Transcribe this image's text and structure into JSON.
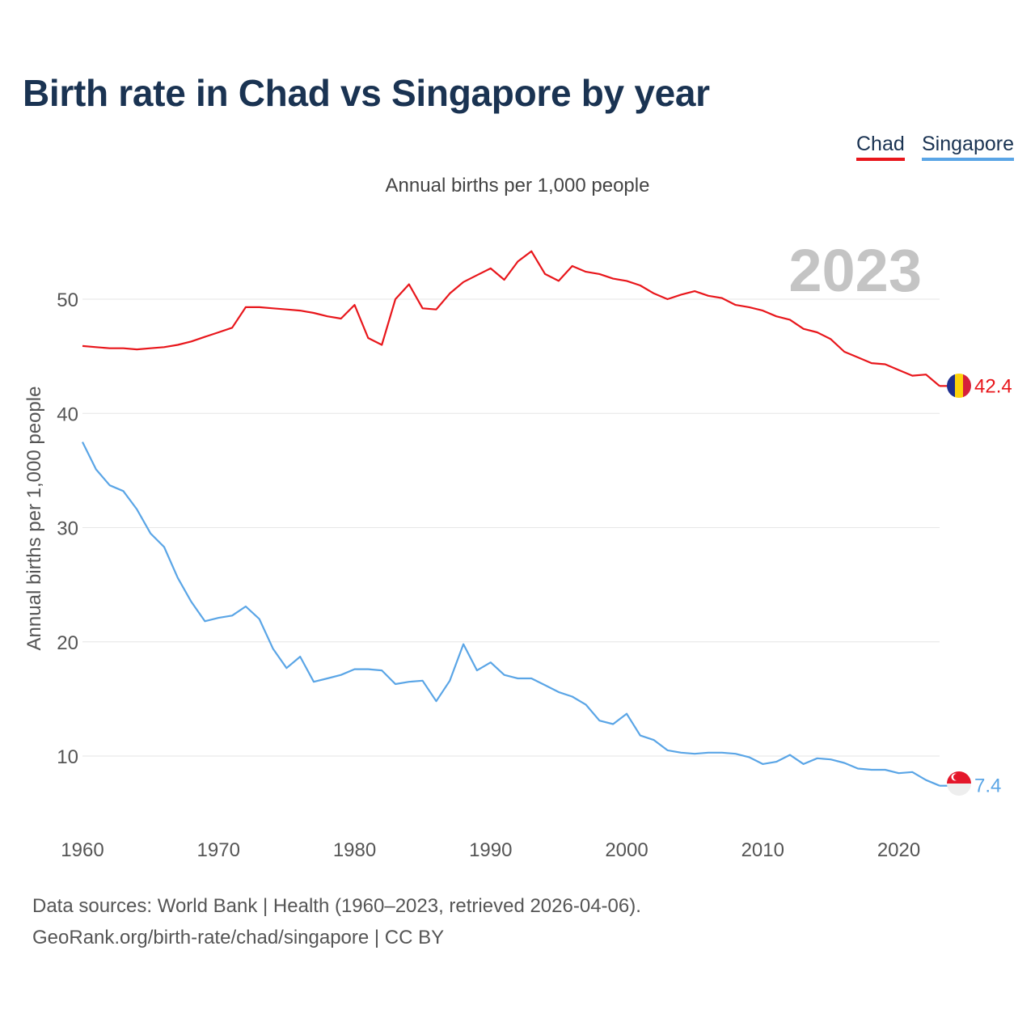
{
  "title": "Birth rate in Chad vs Singapore by year",
  "legend": [
    {
      "name": "Chad",
      "color": "#e8161b"
    },
    {
      "name": "Singapore",
      "color": "#5aa5e6"
    }
  ],
  "subtitle": "Annual births per 1,000 people",
  "year_watermark": "2023",
  "footer": {
    "line1": "Data sources: World Bank | Health (1960–2023, retrieved 2026-04-06).",
    "line2": "GeoRank.org/birth-rate/chad/singapore | CC BY"
  },
  "chart_data": {
    "type": "line",
    "title": "Birth rate in Chad vs Singapore by year",
    "xlabel": "",
    "ylabel": "Annual births per 1,000 people",
    "xlim": [
      1960,
      2023
    ],
    "ylim": [
      5,
      55
    ],
    "x_ticks": [
      1960,
      1970,
      1980,
      1990,
      2000,
      2010,
      2020
    ],
    "y_ticks": [
      10,
      20,
      30,
      40,
      50
    ],
    "grid": true,
    "x": [
      1960,
      1961,
      1962,
      1963,
      1964,
      1965,
      1966,
      1967,
      1968,
      1969,
      1970,
      1971,
      1972,
      1973,
      1974,
      1975,
      1976,
      1977,
      1978,
      1979,
      1980,
      1981,
      1982,
      1983,
      1984,
      1985,
      1986,
      1987,
      1988,
      1989,
      1990,
      1991,
      1992,
      1993,
      1994,
      1995,
      1996,
      1997,
      1998,
      1999,
      2000,
      2001,
      2002,
      2003,
      2004,
      2005,
      2006,
      2007,
      2008,
      2009,
      2010,
      2011,
      2012,
      2013,
      2014,
      2015,
      2016,
      2017,
      2018,
      2019,
      2020,
      2021,
      2022,
      2023
    ],
    "series": [
      {
        "name": "Chad",
        "color": "#e8161b",
        "end_label": "42.4",
        "values": [
          45.9,
          45.8,
          45.7,
          45.7,
          45.6,
          45.7,
          45.8,
          46.0,
          46.3,
          46.7,
          47.1,
          47.5,
          49.3,
          49.3,
          49.2,
          49.1,
          49.0,
          48.8,
          48.5,
          48.3,
          49.5,
          46.6,
          46.0,
          50.0,
          51.3,
          49.2,
          49.1,
          50.5,
          51.5,
          52.1,
          52.7,
          51.7,
          53.3,
          54.2,
          52.2,
          51.6,
          52.9,
          52.4,
          52.2,
          51.8,
          51.6,
          51.2,
          50.5,
          50.0,
          50.4,
          50.7,
          50.3,
          50.1,
          49.5,
          49.3,
          49.0,
          48.5,
          48.2,
          47.4,
          47.1,
          46.5,
          45.4,
          44.9,
          44.4,
          44.3,
          43.8,
          43.3,
          43.4,
          42.4
        ]
      },
      {
        "name": "Singapore",
        "color": "#5aa5e6",
        "end_label": "7.4",
        "values": [
          37.5,
          35.1,
          33.7,
          33.2,
          31.6,
          29.5,
          28.3,
          25.6,
          23.5,
          21.8,
          22.1,
          22.3,
          23.1,
          22.0,
          19.4,
          17.7,
          18.7,
          16.5,
          16.8,
          17.1,
          17.6,
          17.6,
          17.5,
          16.3,
          16.5,
          16.6,
          14.8,
          16.6,
          19.8,
          17.5,
          18.2,
          17.1,
          16.8,
          16.8,
          16.2,
          15.6,
          15.2,
          14.5,
          13.1,
          12.8,
          13.7,
          11.8,
          11.4,
          10.5,
          10.3,
          10.2,
          10.3,
          10.3,
          10.2,
          9.9,
          9.3,
          9.5,
          10.1,
          9.3,
          9.8,
          9.7,
          9.4,
          8.9,
          8.8,
          8.8,
          8.5,
          8.6,
          7.9,
          7.4
        ]
      }
    ]
  }
}
